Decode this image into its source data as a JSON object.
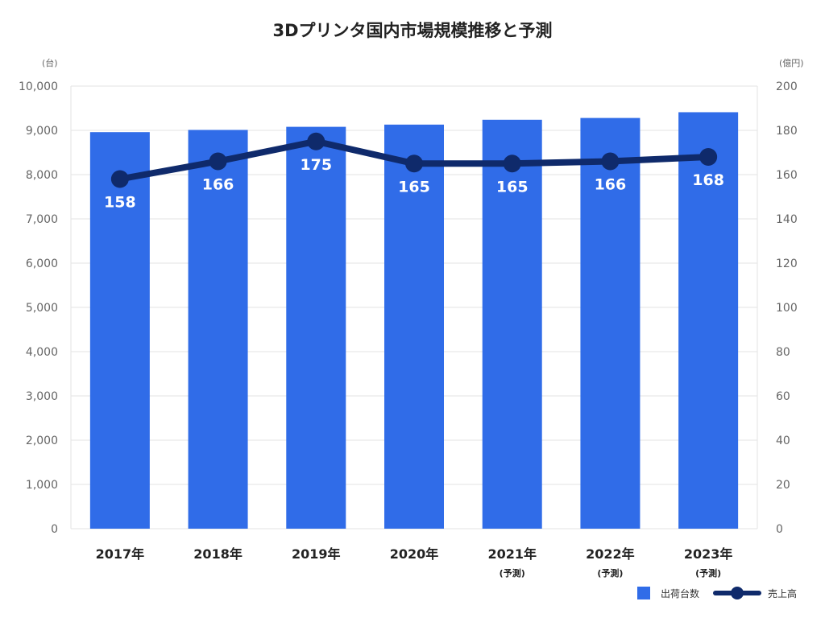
{
  "chart_data": {
    "type": "bar",
    "title": "3Dプリンタ国内市場規模推移と予測",
    "categories": [
      "2017年",
      "2018年",
      "2019年",
      "2020年",
      "2021年",
      "2022年",
      "2023年"
    ],
    "category_notes": [
      "",
      "",
      "",
      "",
      "(予測)",
      "(予測)",
      "(予測)"
    ],
    "left_axis": {
      "unit": "(台)",
      "ylim": [
        0,
        10000
      ],
      "ticks": [
        "0",
        "1,000",
        "2,000",
        "3,000",
        "4,000",
        "5,000",
        "6,000",
        "7,000",
        "8,000",
        "9,000",
        "10,000"
      ]
    },
    "right_axis": {
      "unit": "(億円)",
      "ylim": [
        0,
        200
      ],
      "ticks": [
        "0",
        "20",
        "40",
        "60",
        "80",
        "100",
        "120",
        "140",
        "160",
        "180",
        "200"
      ]
    },
    "series": [
      {
        "name": "出荷台数",
        "type": "bar",
        "axis": "left",
        "color": "#306ce8",
        "values": [
          8960,
          9010,
          9080,
          9130,
          9240,
          9280,
          9410
        ]
      },
      {
        "name": "売上高",
        "type": "line",
        "axis": "right",
        "color": "#0f2a6b",
        "values": [
          158,
          166,
          175,
          165,
          165,
          166,
          168
        ],
        "labels": [
          "158",
          "166",
          "175",
          "165",
          "165",
          "166",
          "168"
        ]
      }
    ],
    "grid": true,
    "legend": "bottom-right"
  }
}
